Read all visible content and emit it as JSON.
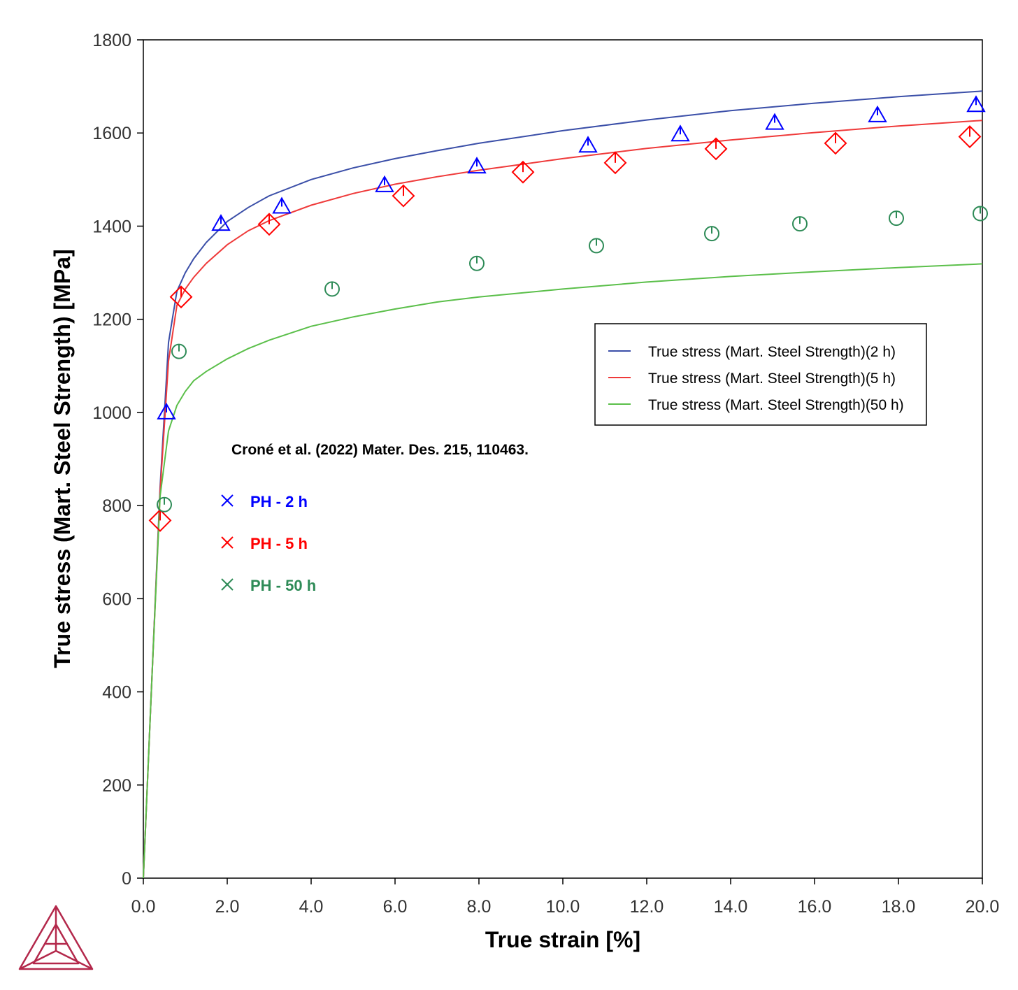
{
  "chart_data": {
    "type": "line",
    "xlabel": "True strain [%]",
    "ylabel": "True stress (Mart. Steel Strength) [MPa]",
    "xlim": [
      0,
      20
    ],
    "ylim": [
      0,
      1800
    ],
    "x_ticks": [
      "0.0",
      "2.0",
      "4.0",
      "6.0",
      "8.0",
      "10.0",
      "12.0",
      "14.0",
      "16.0",
      "18.0",
      "20.0"
    ],
    "y_ticks": [
      "0",
      "200",
      "400",
      "600",
      "800",
      "1000",
      "1200",
      "1400",
      "1600",
      "1800"
    ],
    "grid": false,
    "legend_position": "right-middle",
    "series": [
      {
        "name": "True stress (Mart. Steel Strength)(2 h)",
        "color": "#3b4fa8",
        "x": [
          0,
          0.2,
          0.4,
          0.6,
          0.8,
          1.0,
          1.2,
          1.5,
          2.0,
          2.5,
          3.0,
          4.0,
          5.0,
          6.0,
          7.0,
          8.0,
          10.0,
          12.0,
          14.0,
          16.0,
          18.0,
          20.0
        ],
        "y": [
          0,
          420,
          840,
          1150,
          1260,
          1300,
          1330,
          1365,
          1410,
          1440,
          1465,
          1500,
          1525,
          1545,
          1562,
          1578,
          1605,
          1628,
          1648,
          1664,
          1678,
          1690
        ]
      },
      {
        "name": "True stress (Mart. Steel Strength)(5 h)",
        "color": "#ef3a3a",
        "x": [
          0,
          0.2,
          0.4,
          0.6,
          0.8,
          1.0,
          1.2,
          1.5,
          2.0,
          2.5,
          3.0,
          4.0,
          5.0,
          6.0,
          7.0,
          8.0,
          10.0,
          12.0,
          14.0,
          16.0,
          18.0,
          20.0
        ],
        "y": [
          0,
          420,
          830,
          1110,
          1230,
          1265,
          1290,
          1320,
          1360,
          1390,
          1412,
          1445,
          1470,
          1490,
          1506,
          1520,
          1545,
          1567,
          1585,
          1601,
          1615,
          1627
        ]
      },
      {
        "name": "True stress (Mart. Steel Strength)(50 h)",
        "color": "#5bbf4a",
        "x": [
          0,
          0.2,
          0.4,
          0.6,
          0.8,
          1.0,
          1.2,
          1.5,
          2.0,
          2.5,
          3.0,
          4.0,
          5.0,
          6.0,
          7.0,
          8.0,
          10.0,
          12.0,
          14.0,
          16.0,
          18.0,
          20.0
        ],
        "y": [
          0,
          420,
          820,
          960,
          1015,
          1045,
          1068,
          1088,
          1115,
          1137,
          1155,
          1185,
          1205,
          1222,
          1237,
          1248,
          1265,
          1280,
          1292,
          1302,
          1311,
          1319
        ]
      }
    ],
    "experimental": [
      {
        "name": "PH - 2 h",
        "color": "#0000ff",
        "marker": "triangle",
        "x": [
          0.55,
          1.85,
          3.3,
          5.75,
          7.95,
          10.6,
          12.8,
          15.05,
          17.5,
          19.85
        ],
        "y": [
          1000,
          1405,
          1442,
          1488,
          1528,
          1573,
          1597,
          1622,
          1638,
          1660
        ]
      },
      {
        "name": "PH - 5 h",
        "color": "#ff0000",
        "marker": "diamond",
        "x": [
          0.4,
          0.9,
          3.0,
          6.2,
          9.05,
          11.25,
          13.65,
          16.5,
          19.7
        ],
        "y": [
          768,
          1248,
          1404,
          1465,
          1516,
          1536,
          1566,
          1578,
          1592
        ]
      },
      {
        "name": "PH - 50 h",
        "color": "#2e8b57",
        "marker": "circle",
        "x": [
          0.5,
          0.85,
          4.5,
          7.95,
          10.8,
          13.55,
          15.65,
          17.95,
          19.95
        ],
        "y": [
          802,
          1131,
          1265,
          1320,
          1358,
          1384,
          1405,
          1417,
          1427
        ]
      }
    ],
    "annotation": "Croné et al. (2022) Mater. Des. 215, 110463."
  },
  "logo": {
    "name": "thermo-calc-logo-icon",
    "color": "#b3284b"
  }
}
